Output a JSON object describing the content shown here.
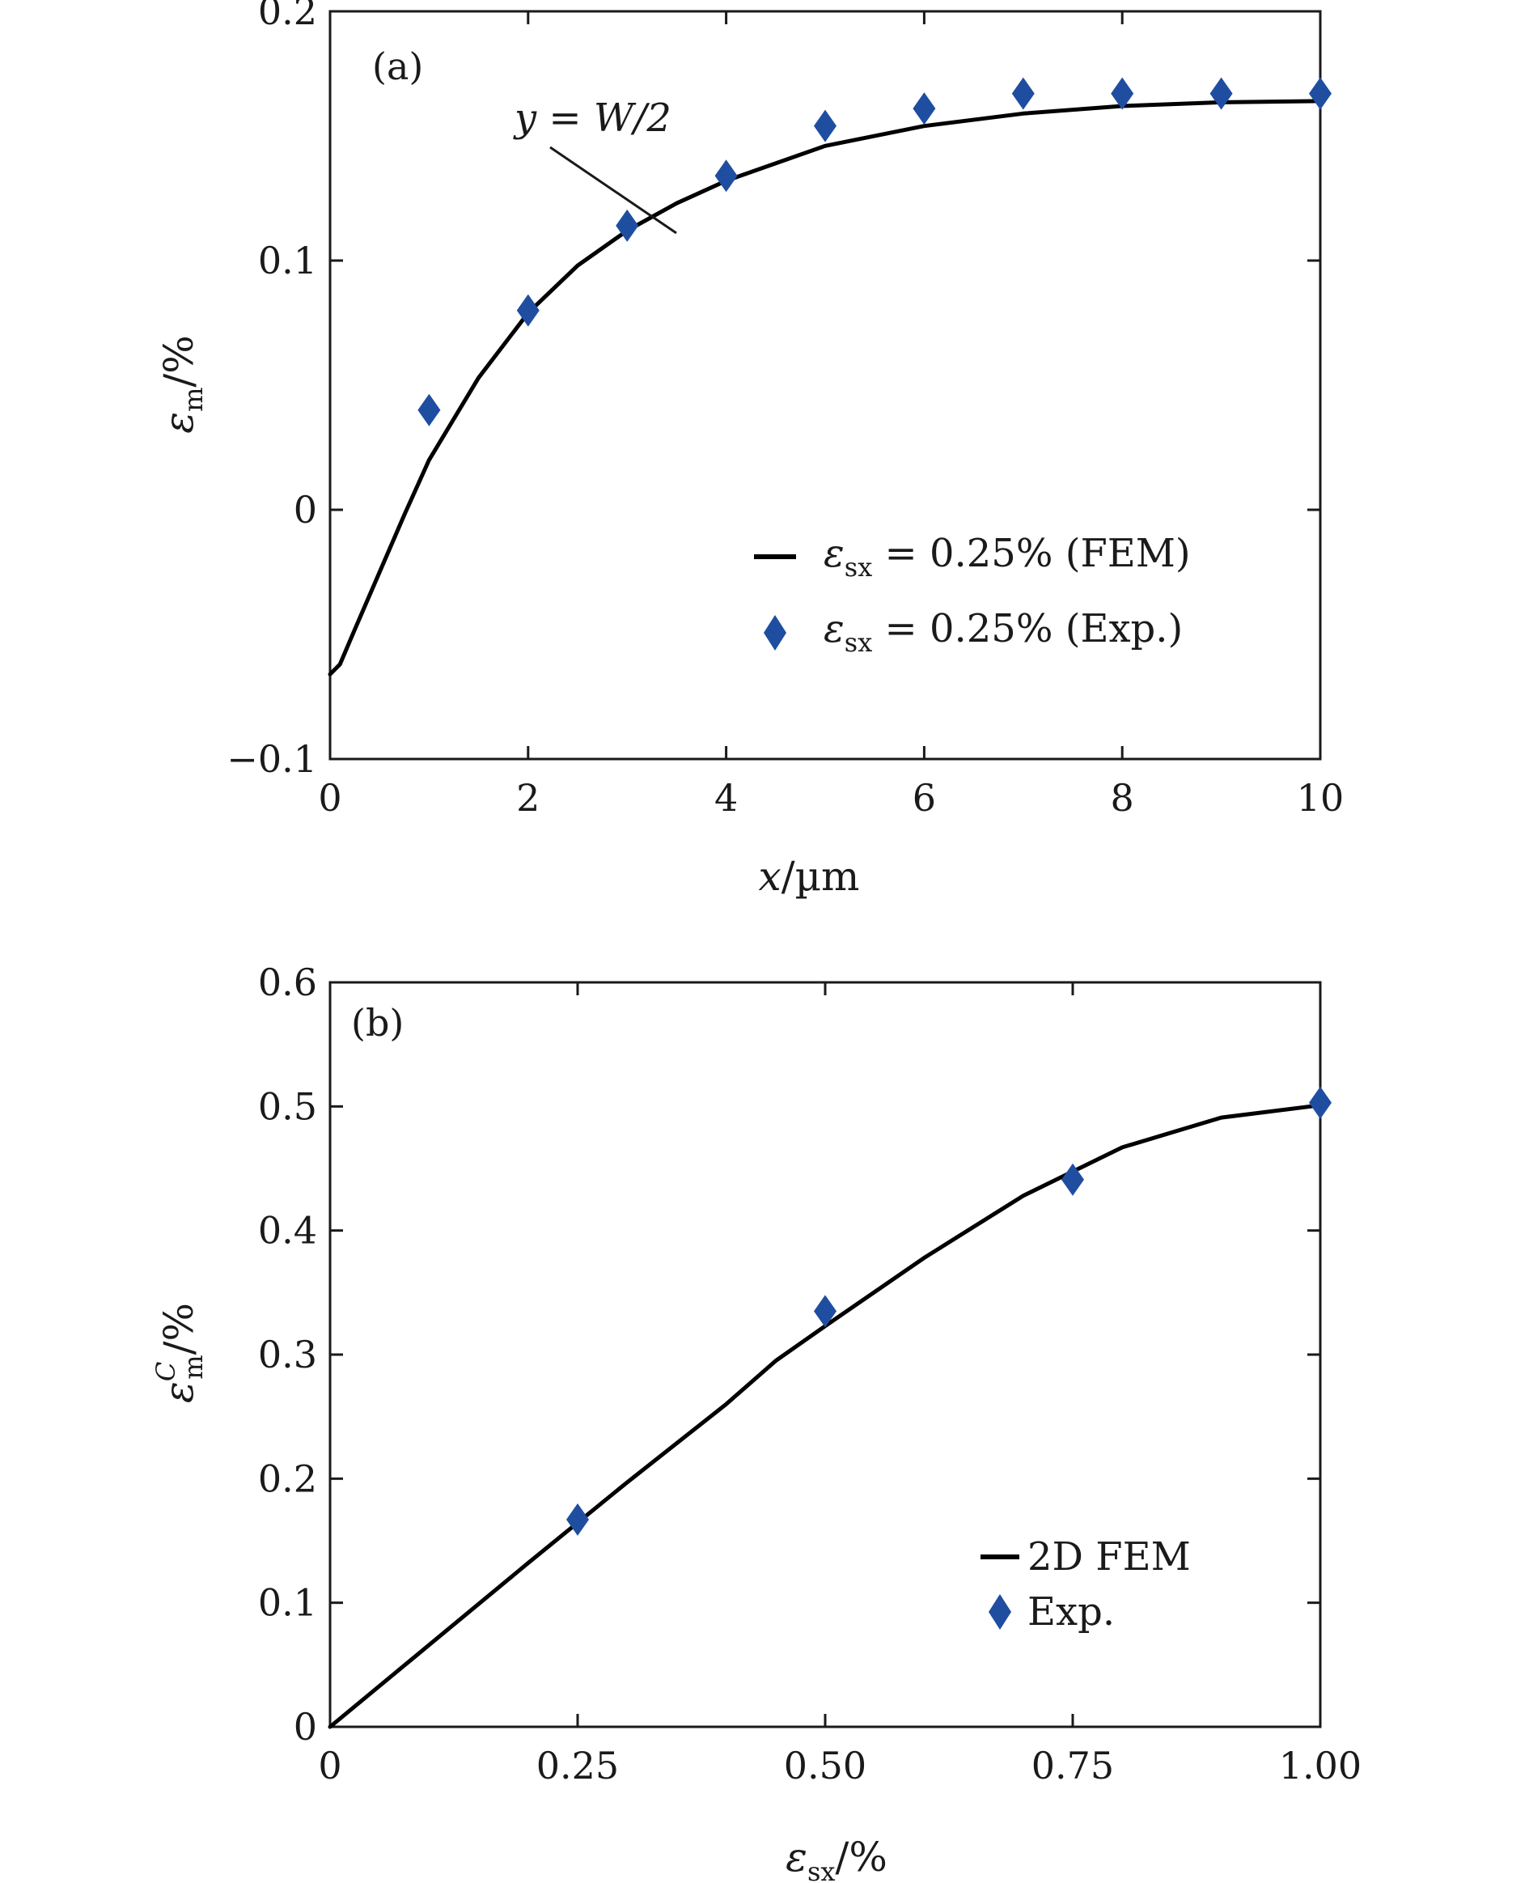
{
  "chart_data": [
    {
      "panel": "(a)",
      "type": "line",
      "xlabel": "x/µm",
      "ylabel": "εm/%",
      "xlim": [
        0,
        10
      ],
      "ylim": [
        -0.1,
        0.2
      ],
      "xticks": [
        "0",
        "2",
        "4",
        "6",
        "8",
        "10"
      ],
      "yticks": [
        "−0.1",
        "0",
        "0.1",
        "0.2"
      ],
      "xtick_values": [
        0,
        2,
        4,
        6,
        8,
        10
      ],
      "ytick_values": [
        -0.1,
        0,
        0.1,
        0.2
      ],
      "grid": false,
      "legend_position": "lower-right",
      "annotation": "y = W/2",
      "series": [
        {
          "name": "εsx = 0.25% (FEM)",
          "kind": "line",
          "color": "#000000",
          "x": [
            0,
            0.1,
            0.25,
            0.5,
            0.75,
            1,
            1.5,
            2,
            2.5,
            3,
            3.5,
            4,
            5,
            6,
            7,
            8,
            9,
            10
          ],
          "y": [
            -0.066,
            -0.062,
            -0.048,
            -0.025,
            -0.002,
            0.02,
            0.053,
            0.079,
            0.098,
            0.112,
            0.123,
            0.132,
            0.146,
            0.154,
            0.159,
            0.162,
            0.1635,
            0.164
          ]
        },
        {
          "name": "εsx = 0.25% (Exp.)",
          "kind": "marker",
          "marker": "diamond",
          "color": "#1f4ea1",
          "x": [
            1,
            2,
            3,
            4,
            5,
            6,
            7,
            8,
            9,
            10
          ],
          "y": [
            0.04,
            0.08,
            0.114,
            0.134,
            0.154,
            0.161,
            0.167,
            0.167,
            0.167,
            0.167
          ]
        }
      ]
    },
    {
      "panel": "(b)",
      "type": "line",
      "xlabel": "εsx/%",
      "ylabel": "εmC/%",
      "xlim": [
        0,
        1
      ],
      "ylim": [
        0,
        0.6
      ],
      "xticks": [
        "0",
        "0.25",
        "0.50",
        "0.75",
        "1.00"
      ],
      "yticks": [
        "0",
        "0.1",
        "0.2",
        "0.3",
        "0.4",
        "0.5",
        "0.6"
      ],
      "xtick_values": [
        0,
        0.25,
        0.5,
        0.75,
        1.0
      ],
      "ytick_values": [
        0,
        0.1,
        0.2,
        0.3,
        0.4,
        0.5,
        0.6
      ],
      "grid": false,
      "legend_position": "lower-right",
      "series": [
        {
          "name": "2D FEM",
          "kind": "line",
          "color": "#000000",
          "x": [
            0,
            0.1,
            0.2,
            0.3,
            0.4,
            0.45,
            0.5,
            0.6,
            0.7,
            0.8,
            0.9,
            1.0
          ],
          "y": [
            0,
            0.066,
            0.132,
            0.197,
            0.26,
            0.295,
            0.323,
            0.378,
            0.428,
            0.467,
            0.491,
            0.501
          ]
        },
        {
          "name": "Exp.",
          "kind": "marker",
          "marker": "diamond",
          "color": "#1f4ea1",
          "x": [
            0.25,
            0.5,
            0.75,
            1.0
          ],
          "y": [
            0.167,
            0.335,
            0.441,
            0.503
          ]
        }
      ]
    }
  ]
}
